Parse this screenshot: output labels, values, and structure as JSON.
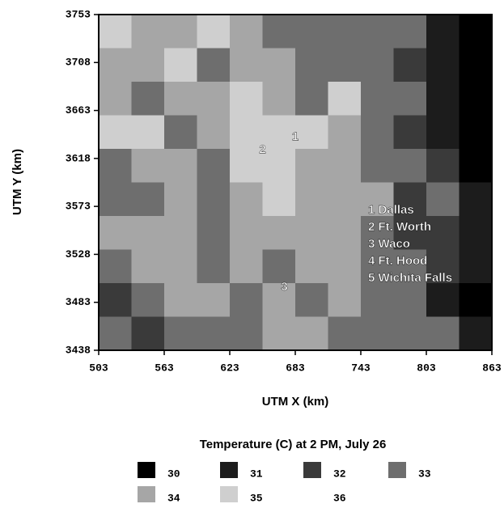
{
  "chart_data": {
    "type": "heatmap",
    "title": "Temperature (C) at 2 PM, July 26",
    "xlabel": "UTM X (km)",
    "ylabel": "UTM Y (km)",
    "xlim": [
      503,
      863
    ],
    "ylim": [
      3438,
      3753
    ],
    "xticks": [
      503,
      563,
      623,
      683,
      743,
      803,
      863
    ],
    "yticks": [
      3438,
      3483,
      3528,
      3573,
      3618,
      3663,
      3708,
      3753
    ],
    "z": [
      [
        35,
        34,
        34,
        35,
        34,
        33,
        33,
        33,
        33,
        33,
        31,
        30
      ],
      [
        34,
        34,
        35,
        33,
        34,
        34,
        33,
        33,
        33,
        32,
        31,
        30
      ],
      [
        34,
        33,
        34,
        34,
        35,
        34,
        33,
        35,
        33,
        33,
        31,
        30
      ],
      [
        35,
        35,
        33,
        34,
        35,
        35,
        35,
        34,
        33,
        32,
        31,
        30
      ],
      [
        33,
        34,
        34,
        33,
        35,
        35,
        34,
        34,
        33,
        33,
        32,
        30
      ],
      [
        33,
        33,
        34,
        33,
        34,
        35,
        34,
        34,
        34,
        32,
        33,
        31
      ],
      [
        34,
        34,
        34,
        33,
        34,
        34,
        34,
        34,
        33,
        32,
        32,
        31
      ],
      [
        33,
        34,
        34,
        33,
        34,
        33,
        34,
        34,
        33,
        33,
        32,
        31
      ],
      [
        32,
        33,
        34,
        34,
        33,
        34,
        33,
        34,
        33,
        33,
        31,
        30
      ],
      [
        33,
        32,
        33,
        33,
        33,
        34,
        34,
        33,
        33,
        33,
        33,
        31
      ]
    ],
    "levels": [
      30,
      31,
      32,
      33,
      34,
      35,
      36
    ],
    "colors": [
      "#000000",
      "#1c1c1c",
      "#3a3a3a",
      "#6e6e6e",
      "#a6a6a6",
      "#cfcfcf",
      "#ffffff"
    ],
    "markers": [
      {
        "label": "1",
        "x": 683,
        "y": 3638
      },
      {
        "label": "2",
        "x": 653,
        "y": 3626
      },
      {
        "label": "3",
        "x": 673,
        "y": 3497
      }
    ],
    "annotations": [
      "1 Dallas",
      "2 Ft. Worth",
      "3 Waco",
      "4 Ft. Hood",
      "5 Wichita Falls"
    ]
  }
}
